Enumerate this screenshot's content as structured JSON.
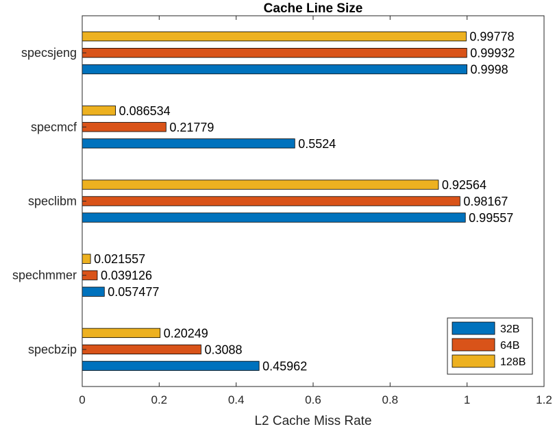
{
  "chart_data": {
    "type": "bar",
    "orientation": "horizontal",
    "title": "Cache Line Size",
    "xlabel": "L2 Cache Miss Rate",
    "ylabel": "",
    "xlim": [
      0,
      1.2
    ],
    "xticks": [
      "0",
      "0.2",
      "0.4",
      "0.6",
      "0.8",
      "1",
      "1.2"
    ],
    "categories": [
      "specbzip",
      "spechmmer",
      "speclibm",
      "specmcf",
      "specsjeng"
    ],
    "series": [
      {
        "name": "32B",
        "color": "#0072BD",
        "values": [
          0.45962,
          0.057477,
          0.99557,
          0.5524,
          0.9998
        ],
        "labels": [
          "0.45962",
          "0.057477",
          "0.99557",
          "0.5524",
          "0.9998"
        ]
      },
      {
        "name": "64B",
        "color": "#D95319",
        "values": [
          0.3088,
          0.039126,
          0.98167,
          0.21779,
          0.99932
        ],
        "labels": [
          "0.3088",
          "0.039126",
          "0.98167",
          "0.21779",
          "0.99932"
        ]
      },
      {
        "name": "128B",
        "color": "#EDB120",
        "values": [
          0.20249,
          0.021557,
          0.92564,
          0.086534,
          0.99778
        ],
        "labels": [
          "0.20249",
          "0.021557",
          "0.92564",
          "0.086534",
          "0.99778"
        ]
      }
    ],
    "legend": "bottom-right",
    "grid": false
  }
}
